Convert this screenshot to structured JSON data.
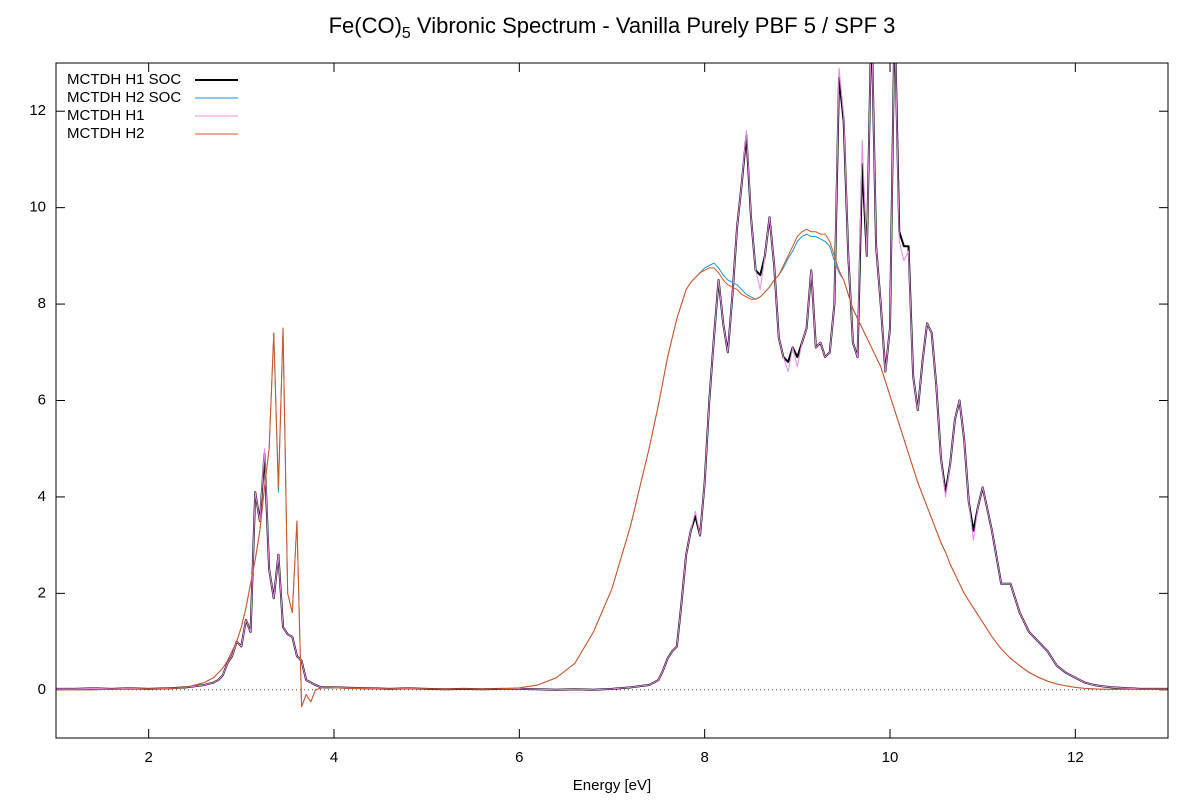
{
  "chart_data": {
    "type": "line",
    "title": [
      "Fe(CO)",
      "5",
      " Vibronic Spectrum - Vanilla Purely PBF 5 / SPF 3"
    ],
    "xlabel": "Energy [eV]",
    "xlim": [
      1,
      13
    ],
    "ylim": [
      -1,
      13
    ],
    "xticks": [
      2,
      4,
      6,
      8,
      10,
      12
    ],
    "yticks": [
      0,
      2,
      4,
      6,
      8,
      10,
      12
    ],
    "zeroaxis": true,
    "legend": "top-left",
    "x": [
      1,
      1.2,
      1.4,
      1.6,
      1.8,
      2,
      2.2,
      2.4,
      2.6,
      2.7,
      2.75,
      2.8,
      2.85,
      2.9,
      2.95,
      3,
      3.05,
      3.1,
      3.15,
      3.2,
      3.25,
      3.3,
      3.35,
      3.4,
      3.45,
      3.5,
      3.55,
      3.6,
      3.65,
      3.7,
      3.75,
      3.8,
      3.85,
      3.9,
      4,
      4.2,
      4.4,
      4.6,
      4.8,
      5,
      5.2,
      5.4,
      5.6,
      5.8,
      6,
      6.2,
      6.4,
      6.6,
      6.8,
      7,
      7.2,
      7.4,
      7.5,
      7.55,
      7.6,
      7.65,
      7.7,
      7.75,
      7.8,
      7.85,
      7.9,
      7.95,
      8,
      8.05,
      8.1,
      8.15,
      8.2,
      8.25,
      8.3,
      8.35,
      8.4,
      8.45,
      8.5,
      8.55,
      8.6,
      8.65,
      8.7,
      8.75,
      8.8,
      8.85,
      8.9,
      8.95,
      9,
      9.05,
      9.1,
      9.15,
      9.2,
      9.25,
      9.3,
      9.35,
      9.4,
      9.45,
      9.5,
      9.55,
      9.6,
      9.65,
      9.7,
      9.75,
      9.8,
      9.85,
      9.9,
      9.95,
      10,
      10.05,
      10.1,
      10.15,
      10.2,
      10.25,
      10.3,
      10.35,
      10.4,
      10.45,
      10.5,
      10.55,
      10.6,
      10.65,
      10.7,
      10.75,
      10.8,
      10.85,
      10.9,
      10.95,
      11,
      11.1,
      11.2,
      11.3,
      11.4,
      11.5,
      11.6,
      11.7,
      11.8,
      11.9,
      12,
      12.1,
      12.2,
      12.3,
      12.4,
      12.5,
      12.6,
      12.7,
      12.8,
      12.9,
      13
    ],
    "series": [
      {
        "name": "MCTDH H1 SOC",
        "color": "#000000",
        "width": 2,
        "values": [
          0.02,
          0.02,
          0.03,
          0.02,
          0.03,
          0.02,
          0.03,
          0.05,
          0.1,
          0.15,
          0.2,
          0.3,
          0.55,
          0.7,
          1.0,
          0.9,
          1.45,
          1.2,
          4.1,
          3.5,
          4.9,
          2.5,
          1.9,
          2.8,
          1.3,
          1.15,
          1.1,
          0.7,
          0.6,
          0.2,
          0.15,
          0.1,
          0.06,
          0.05,
          0.05,
          0.04,
          0.03,
          0.02,
          0.03,
          0.02,
          0.01,
          0.02,
          0.01,
          0.02,
          0.02,
          0.01,
          0,
          0.01,
          0,
          0.02,
          0.05,
          0.1,
          0.2,
          0.4,
          0.65,
          0.8,
          0.9,
          1.8,
          2.8,
          3.3,
          3.6,
          3.2,
          4.3,
          6.0,
          7.3,
          8.5,
          7.6,
          7.0,
          8.2,
          9.6,
          10.5,
          11.5,
          9.8,
          8.7,
          8.6,
          9.0,
          9.8,
          8.8,
          7.3,
          6.9,
          6.8,
          7.1,
          6.9,
          7.2,
          7.5,
          8.7,
          7.1,
          7.2,
          6.9,
          7.0,
          8.0,
          12.7,
          11.8,
          9.0,
          7.2,
          6.9,
          10.9,
          9.0,
          14.0,
          9.2,
          8.0,
          6.6,
          7.5,
          14.0,
          9.5,
          9.2,
          9.2,
          6.5,
          5.8,
          6.8,
          7.6,
          7.4,
          6.3,
          4.8,
          4.1,
          4.7,
          5.6,
          6.0,
          5.2,
          3.9,
          3.3,
          3.8,
          4.2,
          3.3,
          2.2,
          2.2,
          1.6,
          1.2,
          1.0,
          0.8,
          0.5,
          0.35,
          0.25,
          0.15,
          0.1,
          0.07,
          0.05,
          0.04,
          0.03,
          0.02,
          0.02,
          0.02,
          0.02
        ]
      },
      {
        "name": "MCTDH H2 SOC",
        "color": "#1a8fd8",
        "width": 1,
        "values": [
          0,
          0,
          0,
          0.01,
          0.01,
          0.02,
          0.02,
          0.05,
          0.15,
          0.25,
          0.35,
          0.45,
          0.6,
          0.8,
          1.0,
          1.3,
          1.7,
          2.2,
          2.7,
          3.3,
          4.2,
          5.0,
          7.4,
          4.1,
          7.5,
          2.0,
          1.6,
          3.5,
          -0.35,
          -0.1,
          -0.25,
          0,
          0.03,
          0.05,
          0.04,
          0.03,
          0.02,
          0.02,
          0.02,
          0.02,
          0.02,
          0.02,
          0.02,
          0.02,
          0.04,
          0.1,
          0.25,
          0.55,
          1.2,
          2.1,
          3.4,
          5.0,
          5.9,
          6.4,
          6.9,
          7.3,
          7.7,
          8.0,
          8.3,
          8.45,
          8.55,
          8.65,
          8.75,
          8.8,
          8.85,
          8.75,
          8.6,
          8.5,
          8.45,
          8.4,
          8.3,
          8.2,
          8.15,
          8.1,
          8.15,
          8.25,
          8.35,
          8.5,
          8.6,
          8.75,
          8.95,
          9.1,
          9.3,
          9.4,
          9.45,
          9.4,
          9.4,
          9.35,
          9.3,
          9.2,
          8.9,
          8.65,
          8.5,
          8.2,
          7.9,
          7.7,
          7.5,
          7.3,
          7.1,
          6.9,
          6.7,
          6.4,
          6.1,
          5.8,
          5.5,
          5.2,
          4.9,
          4.6,
          4.3,
          4.05,
          3.8,
          3.55,
          3.3,
          3.05,
          2.85,
          2.6,
          2.4,
          2.2,
          2.0,
          1.85,
          1.7,
          1.55,
          1.4,
          1.1,
          0.85,
          0.65,
          0.5,
          0.36,
          0.26,
          0.18,
          0.12,
          0.08,
          0.05,
          0.03,
          0.02,
          0.01,
          0.01,
          0.01,
          0.01,
          0.01,
          0.01,
          0.01,
          0.01
        ]
      },
      {
        "name": "MCTDH H1",
        "color": "#e58be5",
        "width": 1,
        "values": [
          0.02,
          0.02,
          0.03,
          0.02,
          0.03,
          0.02,
          0.03,
          0.05,
          0.1,
          0.15,
          0.2,
          0.3,
          0.55,
          0.7,
          1.0,
          0.9,
          1.45,
          1.2,
          4.1,
          3.5,
          5.0,
          2.5,
          1.9,
          2.8,
          1.3,
          1.15,
          1.1,
          0.7,
          0.6,
          0.2,
          0.15,
          0.1,
          0.06,
          0.05,
          0.05,
          0.04,
          0.03,
          0.02,
          0.03,
          0.02,
          0.01,
          0.02,
          0.01,
          0.02,
          0.02,
          0.01,
          0,
          0.01,
          0,
          0.02,
          0.05,
          0.1,
          0.2,
          0.4,
          0.65,
          0.8,
          0.9,
          1.8,
          2.8,
          3.3,
          3.7,
          3.2,
          4.3,
          6.0,
          7.3,
          8.5,
          7.6,
          7.0,
          8.2,
          9.6,
          10.5,
          11.6,
          9.8,
          8.7,
          8.3,
          9.0,
          9.8,
          8.8,
          7.3,
          6.9,
          6.6,
          7.1,
          6.7,
          7.2,
          7.5,
          8.7,
          7.1,
          7.2,
          6.9,
          7.0,
          8.0,
          12.9,
          11.9,
          9.0,
          7.2,
          6.9,
          11.4,
          9.0,
          14.0,
          9.2,
          8.0,
          6.6,
          7.5,
          14.0,
          9.3,
          8.9,
          9.1,
          6.5,
          5.8,
          6.8,
          7.6,
          7.4,
          6.3,
          4.8,
          4.0,
          4.7,
          5.6,
          6.0,
          5.2,
          3.9,
          3.1,
          3.8,
          4.2,
          3.3,
          2.2,
          2.2,
          1.6,
          1.2,
          1.0,
          0.8,
          0.5,
          0.35,
          0.25,
          0.15,
          0.1,
          0.07,
          0.05,
          0.04,
          0.03,
          0.02,
          0.02,
          0.02,
          0.02
        ]
      },
      {
        "name": "MCTDH H2",
        "color": "#d9541e",
        "width": 1,
        "values": [
          0,
          0,
          0,
          0.01,
          0.01,
          0.02,
          0.02,
          0.05,
          0.15,
          0.25,
          0.35,
          0.45,
          0.6,
          0.8,
          1.0,
          1.3,
          1.7,
          2.2,
          2.7,
          3.3,
          4.2,
          5.0,
          7.4,
          4.2,
          7.5,
          2.0,
          1.6,
          3.5,
          -0.35,
          -0.1,
          -0.25,
          0,
          0.03,
          0.05,
          0.04,
          0.03,
          0.02,
          0.02,
          0.02,
          0.02,
          0.02,
          0.02,
          0.02,
          0.02,
          0.04,
          0.1,
          0.25,
          0.55,
          1.2,
          2.1,
          3.4,
          5.0,
          5.9,
          6.4,
          6.9,
          7.3,
          7.7,
          8.0,
          8.3,
          8.45,
          8.55,
          8.65,
          8.7,
          8.75,
          8.75,
          8.65,
          8.5,
          8.4,
          8.35,
          8.3,
          8.2,
          8.15,
          8.1,
          8.1,
          8.15,
          8.25,
          8.35,
          8.5,
          8.6,
          8.8,
          9.0,
          9.2,
          9.4,
          9.5,
          9.55,
          9.5,
          9.5,
          9.45,
          9.45,
          9.3,
          9.0,
          8.7,
          8.5,
          8.2,
          7.9,
          7.7,
          7.5,
          7.3,
          7.1,
          6.9,
          6.7,
          6.4,
          6.1,
          5.8,
          5.5,
          5.2,
          4.9,
          4.6,
          4.3,
          4.05,
          3.8,
          3.55,
          3.3,
          3.05,
          2.85,
          2.6,
          2.4,
          2.2,
          2.0,
          1.85,
          1.7,
          1.55,
          1.4,
          1.1,
          0.85,
          0.65,
          0.5,
          0.36,
          0.26,
          0.18,
          0.12,
          0.08,
          0.05,
          0.03,
          0.02,
          0.01,
          0.01,
          0.01,
          0.01,
          0.01,
          0.01,
          0.01,
          0.01
        ]
      }
    ]
  }
}
